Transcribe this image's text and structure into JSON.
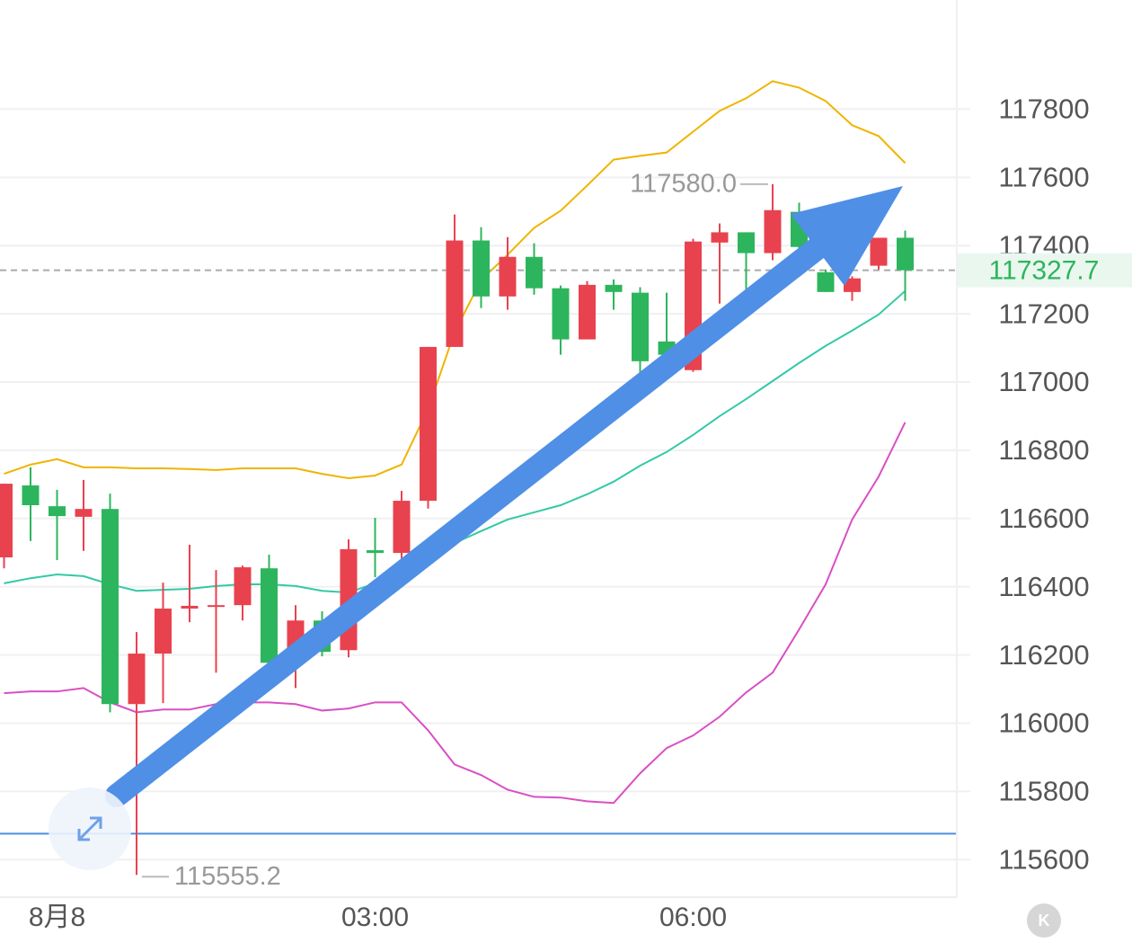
{
  "chart_data": {
    "type": "candlestick",
    "categories": [
      null,
      null,
      "8月8",
      null,
      null,
      null,
      null,
      null,
      null,
      null,
      null,
      null,
      null,
      null,
      "03:00",
      null,
      null,
      null,
      null,
      null,
      null,
      null,
      null,
      null,
      null,
      null,
      "06:00",
      null,
      null,
      null,
      null,
      null,
      null,
      null,
      null
    ],
    "open": [
      116486,
      116697,
      116636,
      116605,
      116628,
      116056,
      116204,
      116336,
      116344,
      116346,
      116454,
      116177,
      116301,
      116214,
      116507,
      116499,
      116652,
      117103,
      117415,
      117251,
      117367,
      117275,
      117125,
      117285,
      117262,
      117119,
      117035,
      117409,
      117439,
      117378,
      117499,
      117322,
      117264,
      117341,
      117423
    ],
    "high": [
      116702,
      116750,
      116684,
      116713,
      116673,
      116267,
      116412,
      116523,
      116449,
      116462,
      116494,
      116346,
      116328,
      116539,
      116602,
      116681,
      117103,
      117491,
      117454,
      117425,
      117407,
      117283,
      117296,
      117301,
      117278,
      117262,
      117420,
      117465,
      117439,
      117580,
      117526,
      117330,
      117310,
      117423,
      117444
    ],
    "low": [
      116454,
      116534,
      116478,
      116505,
      116032,
      115555.2,
      116059,
      116296,
      116148,
      116301,
      116177,
      116103,
      116196,
      116193,
      116428,
      116460,
      116629,
      117103,
      117217,
      117212,
      117256,
      117080,
      117125,
      117212,
      117027,
      117080,
      117030,
      117230,
      117272,
      117357,
      117360,
      117264,
      117238,
      117330,
      117238
    ],
    "close": [
      116702,
      116639,
      116607,
      116628,
      116056,
      116204,
      116336,
      116344,
      116346,
      116457,
      116177,
      116301,
      116209,
      116510,
      116499,
      116652,
      117103,
      117415,
      117251,
      117367,
      117275,
      117125,
      117285,
      117264,
      117061,
      117080,
      117412,
      117439,
      117378,
      117504,
      117396,
      117264,
      117304,
      117423,
      117327.7
    ],
    "up_color": "#e8424f",
    "down_color": "#2db55d",
    "overlays": [
      {
        "color": "#f0b400",
        "values": [
          116731,
          116758,
          116774,
          116750,
          116750,
          116747,
          116747,
          116745,
          116742,
          116747,
          116747,
          116747,
          116731,
          116718,
          116726,
          116758,
          116921,
          117146,
          117299,
          117373,
          117452,
          117502,
          117576,
          117652,
          117663,
          117673,
          117734,
          117795,
          117832,
          117882,
          117863,
          117824,
          117753,
          117721,
          117642
        ]
      },
      {
        "color": "#33c9a5",
        "values": [
          116410,
          116425,
          116436,
          116431,
          116407,
          116388,
          116391,
          116394,
          116402,
          116407,
          116407,
          116402,
          116388,
          116383,
          116410,
          116454,
          116494,
          116528,
          116563,
          116597,
          116618,
          116639,
          116671,
          116708,
          116755,
          116795,
          116845,
          116900,
          116950,
          117003,
          117056,
          117106,
          117151,
          117198,
          117267
        ]
      },
      {
        "color": "#d94fc4",
        "values": [
          116088,
          116093,
          116093,
          116103,
          116061,
          116032,
          116040,
          116040,
          116056,
          116061,
          116061,
          116056,
          116037,
          116043,
          116061,
          116061,
          115979,
          115879,
          115848,
          115805,
          115784,
          115782,
          115771,
          115766,
          115853,
          115927,
          115964,
          116019,
          116090,
          116148,
          116275,
          116407,
          116597,
          116723,
          116882
        ]
      }
    ],
    "hline": {
      "value": 115676,
      "color": "#4a90e2"
    },
    "last_price": 117327.7,
    "high_label": "117580.0",
    "low_label": "115555.2",
    "ylim": [
      115490,
      118120
    ],
    "yticks": [
      115600,
      115800,
      116000,
      116200,
      116400,
      116600,
      116800,
      117000,
      117200,
      117400,
      117600,
      117800
    ],
    "grid": true
  }
}
